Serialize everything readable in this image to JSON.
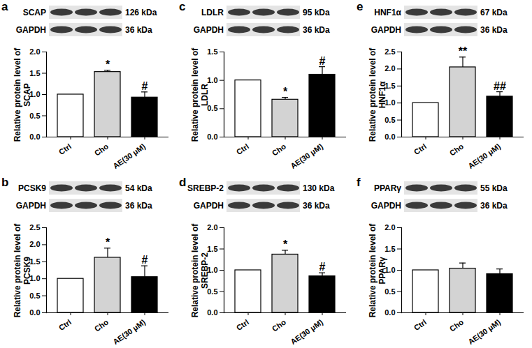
{
  "chart_data": [
    {
      "panel": "a",
      "type": "bar",
      "blot": [
        {
          "label": "SCAP",
          "kda": "126 kDa"
        },
        {
          "label": "GAPDH",
          "kda": "36 kDa"
        }
      ],
      "y_label": "Relative protein level of SCAP",
      "categories": [
        "Ctrl",
        "Cho",
        "AE(30 μM)"
      ],
      "values": [
        1.0,
        1.53,
        0.93
      ],
      "errors": [
        null,
        0.04,
        0.13
      ],
      "annotations": [
        null,
        "*",
        "#"
      ],
      "colors": [
        "#ffffff",
        "#d3d3d3",
        "#000000"
      ],
      "ylim": [
        0,
        2
      ],
      "yticks": [
        {
          "value": 0,
          "label": "0.0"
        },
        {
          "value": 0.5,
          "label": "0.5"
        },
        {
          "value": 1,
          "label": "1.0"
        },
        {
          "value": 1.5,
          "label": "1.5"
        },
        {
          "value": 2,
          "label": "2.0"
        }
      ]
    },
    {
      "panel": "b",
      "type": "bar",
      "blot": [
        {
          "label": "PCSK9",
          "kda": "54 kDa"
        },
        {
          "label": "GAPDH",
          "kda": "36 kDa"
        }
      ],
      "y_label": "Relative protein level of PCSK9",
      "categories": [
        "Ctrl",
        "Cho",
        "AE(30 μM)"
      ],
      "values": [
        1.0,
        1.62,
        1.05
      ],
      "errors": [
        null,
        0.28,
        0.33
      ],
      "annotations": [
        null,
        "*",
        "#"
      ],
      "colors": [
        "#ffffff",
        "#d3d3d3",
        "#000000"
      ],
      "ylim": [
        0,
        2.5
      ],
      "yticks": [
        {
          "value": 0,
          "label": "0.0"
        },
        {
          "value": 0.5,
          "label": "0.5"
        },
        {
          "value": 1,
          "label": "1.0"
        },
        {
          "value": 1.5,
          "label": "1.5"
        },
        {
          "value": 2,
          "label": "2.0"
        },
        {
          "value": 2.5,
          "label": "2.5"
        }
      ]
    },
    {
      "panel": "c",
      "type": "bar",
      "blot": [
        {
          "label": "LDLR",
          "kda": "95 kDa"
        },
        {
          "label": "GAPDH",
          "kda": "36 kDa"
        }
      ],
      "y_label": "Relative protein level of LDLR",
      "categories": [
        "Ctrl",
        "Cho",
        "AE(30 μM)"
      ],
      "values": [
        1.0,
        0.66,
        1.1
      ],
      "errors": [
        null,
        0.04,
        0.14
      ],
      "annotations": [
        null,
        "*",
        "#"
      ],
      "colors": [
        "#ffffff",
        "#d3d3d3",
        "#000000"
      ],
      "ylim": [
        0,
        1.5
      ],
      "yticks": [
        {
          "value": 0,
          "label": "0.0"
        },
        {
          "value": 0.5,
          "label": "0.5"
        },
        {
          "value": 1,
          "label": "1.0"
        },
        {
          "value": 1.5,
          "label": "1.5"
        }
      ]
    },
    {
      "panel": "d",
      "type": "bar",
      "blot": [
        {
          "label": "SREBP-2",
          "kda": "130 kDa"
        },
        {
          "label": "GAPDH",
          "kda": "36 kDa"
        }
      ],
      "y_label": "Relative protein level of SREBP-2",
      "categories": [
        "Ctrl",
        "Cho",
        "AE(30 μM)"
      ],
      "values": [
        1.0,
        1.37,
        0.86
      ],
      "errors": [
        null,
        0.1,
        0.08
      ],
      "annotations": [
        null,
        "*",
        "#"
      ],
      "colors": [
        "#ffffff",
        "#d3d3d3",
        "#000000"
      ],
      "ylim": [
        0,
        2
      ],
      "yticks": [
        {
          "value": 0,
          "label": "0.0"
        },
        {
          "value": 0.5,
          "label": "0.5"
        },
        {
          "value": 1,
          "label": "1.0"
        },
        {
          "value": 1.5,
          "label": "1.5"
        },
        {
          "value": 2,
          "label": "2.0"
        }
      ]
    },
    {
      "panel": "e",
      "type": "bar",
      "blot": [
        {
          "label": "HNF1α",
          "kda": "67 kDa"
        },
        {
          "label": "GAPDH",
          "kda": "36 kDa"
        }
      ],
      "y_label": "Relative protein level of HNF1α",
      "categories": [
        "Ctrl",
        "Cho",
        "AE(30 μM)"
      ],
      "values": [
        1.0,
        2.05,
        1.19
      ],
      "errors": [
        null,
        0.3,
        0.14
      ],
      "annotations": [
        null,
        "**",
        "##"
      ],
      "colors": [
        "#ffffff",
        "#d3d3d3",
        "#000000"
      ],
      "ylim": [
        0,
        2.5
      ],
      "yticks": [
        {
          "value": 0,
          "label": "0.0"
        },
        {
          "value": 0.5,
          "label": "0.5"
        },
        {
          "value": 1,
          "label": "1.0"
        },
        {
          "value": 1.5,
          "label": "1.5"
        },
        {
          "value": 2,
          "label": "2.0"
        },
        {
          "value": 2.5,
          "label": "2.5"
        }
      ]
    },
    {
      "panel": "f",
      "type": "bar",
      "blot": [
        {
          "label": "PPARγ",
          "kda": "55 kDa"
        },
        {
          "label": "GAPDH",
          "kda": "36 kDa"
        }
      ],
      "y_label": "Relative protein level of PPARγ",
      "categories": [
        "Ctrl",
        "Cho",
        "AE(30 μM)"
      ],
      "values": [
        1.0,
        1.04,
        0.91
      ],
      "errors": [
        null,
        0.13,
        0.12
      ],
      "colors": [
        "#ffffff",
        "#d3d3d3",
        "#000000"
      ],
      "ylim": [
        0,
        2
      ],
      "yticks": [
        {
          "value": 0,
          "label": "0.0"
        },
        {
          "value": 0.5,
          "label": "0.5"
        },
        {
          "value": 1,
          "label": "1.0"
        },
        {
          "value": 1.5,
          "label": "1.5"
        },
        {
          "value": 2,
          "label": "2.0"
        }
      ]
    }
  ]
}
